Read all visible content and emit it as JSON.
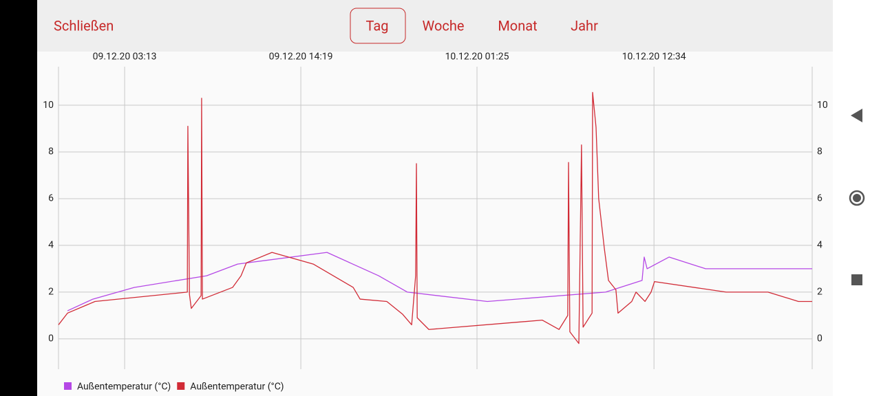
{
  "toolbar": {
    "close": "Schließen",
    "tabs": [
      "Tag",
      "Woche",
      "Monat",
      "Jahr"
    ],
    "selected_tab": "Tag"
  },
  "chart_data": {
    "type": "line",
    "xlim": [
      "08.12.20 23:03",
      "10.12.20 22:32"
    ],
    "xticks": [
      "09.12.20 03:13",
      "09.12.20 14:19",
      "10.12.20 01:25",
      "10.12.20 12:34"
    ],
    "ylim": [
      -1.3,
      11.65
    ],
    "yticks": [
      0,
      2,
      4,
      6,
      8,
      10
    ],
    "grid": true,
    "legend": "bottom-left",
    "series": [
      {
        "name": "Außentemperatur (°C)",
        "color": "#b548e6",
        "x": [
          "08.12.20 23:37",
          "09.12.20 01:13",
          "09.12.20 03:49",
          "09.12.20 08:23",
          "09.12.20 10:20",
          "09.12.20 15:58",
          "09.12.20 19:13",
          "09.12.20 21:02",
          "10.12.20 02:04",
          "10.12.20 09:31",
          "10.12.20 11:49",
          "10.12.20 11:57",
          "10.12.20 12:08",
          "10.12.20 13:31",
          "10.12.20 15:49",
          "10.12.20 22:32"
        ],
        "values": [
          1.2,
          1.7,
          2.2,
          2.7,
          3.2,
          3.7,
          2.7,
          2.0,
          1.6,
          2.0,
          2.5,
          3.5,
          3.0,
          3.5,
          3.0,
          3.0
        ]
      },
      {
        "name": "Außentemperatur (°C)",
        "color": "#d12b36",
        "x": [
          "08.12.20 23:03",
          "08.12.20 23:37",
          "09.12.20 01:21",
          "09.12.20 07:10",
          "09.12.20 07:12",
          "09.12.20 07:18",
          "09.12.20 07:25",
          "09.12.20 08:02",
          "09.12.20 08:04",
          "09.12.20 08:07",
          "09.12.20 10:01",
          "09.12.20 10:33",
          "09.12.20 10:53",
          "09.12.20 12:30",
          "09.12.20 15:06",
          "09.12.20 17:37",
          "09.12.20 18:03",
          "09.12.20 19:44",
          "09.12.20 20:44",
          "09.12.20 21:18",
          "09.12.20 21:33",
          "09.12.20 21:36",
          "09.12.20 21:39",
          "09.12.20 22:23",
          "10.12.20 05:32",
          "10.12.20 06:35",
          "10.12.20 07:08",
          "10.12.20 07:11",
          "10.12.20 07:16",
          "10.12.20 07:50",
          "10.12.20 08:00",
          "10.12.20 08:06",
          "10.12.20 08:40",
          "10.12.20 08:42",
          "10.12.20 08:55",
          "10.12.20 09:05",
          "10.12.20 09:26",
          "10.12.20 09:42",
          "10.12.20 10:10",
          "10.12.20 10:18",
          "10.12.20 11:10",
          "10.12.20 11:26",
          "10.12.20 12:00",
          "10.12.20 12:23",
          "10.12.20 12:36",
          "10.12.20 17:07",
          "10.12.20 19:45",
          "10.12.20 21:40",
          "10.12.20 22:32"
        ],
        "values": [
          0.6,
          1.1,
          1.6,
          2.0,
          9.1,
          1.9,
          1.3,
          1.85,
          10.3,
          1.7,
          2.2,
          2.7,
          3.25,
          3.7,
          3.2,
          2.2,
          1.7,
          1.6,
          1.05,
          0.6,
          2.7,
          7.5,
          0.9,
          0.4,
          0.8,
          0.4,
          1.0,
          7.55,
          0.3,
          -0.2,
          8.3,
          0.5,
          1.1,
          10.55,
          9.05,
          6.0,
          3.9,
          2.5,
          2.1,
          1.1,
          1.6,
          2.0,
          1.6,
          2.0,
          2.45,
          2.0,
          2.0,
          1.6,
          1.6
        ]
      }
    ]
  }
}
